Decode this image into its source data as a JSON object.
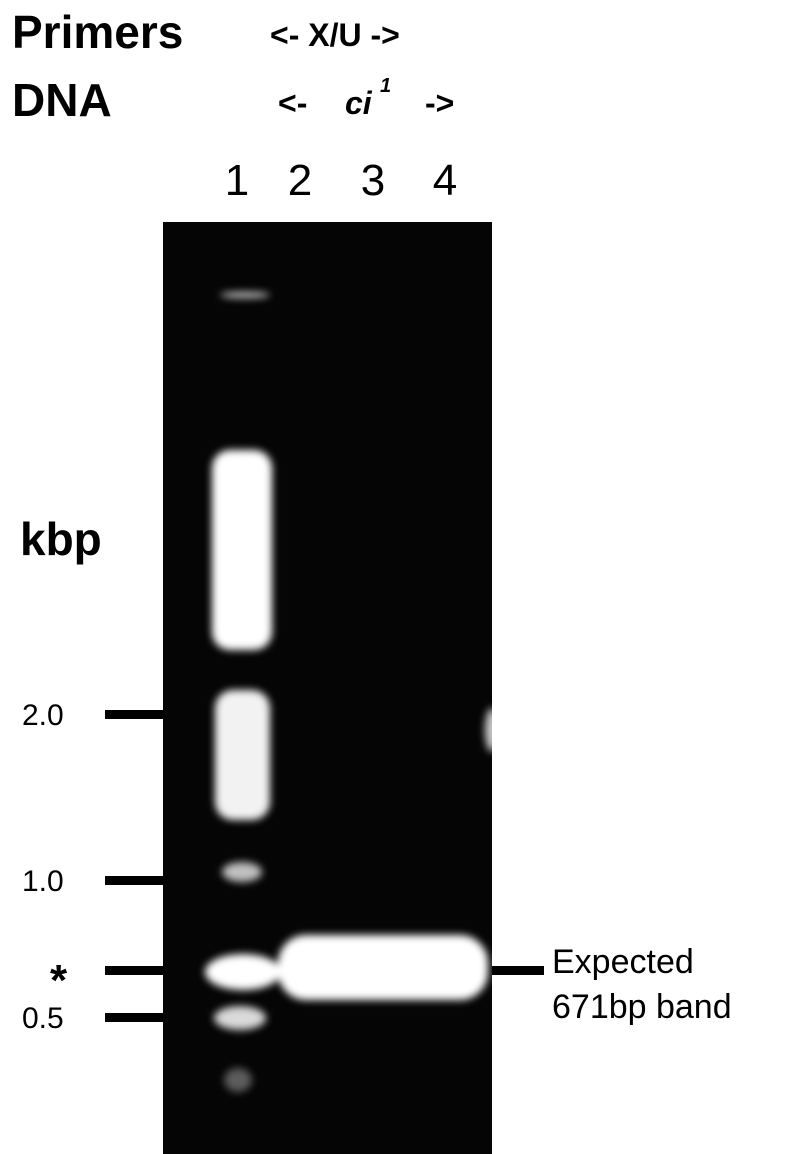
{
  "header": {
    "primers_label": "Primers",
    "primers_value": "<- X/U ->",
    "dna_label": "DNA",
    "dna_prefix": "<-",
    "dna_value": "ci",
    "dna_superscript": "1",
    "dna_suffix": "->"
  },
  "lanes": [
    "1",
    "2",
    "3",
    "4"
  ],
  "axis": {
    "unit": "kbp",
    "markers": [
      "2.0",
      "1.0",
      "*",
      "0.5"
    ]
  },
  "annotation": [
    "Expected",
    "671bp band"
  ]
}
